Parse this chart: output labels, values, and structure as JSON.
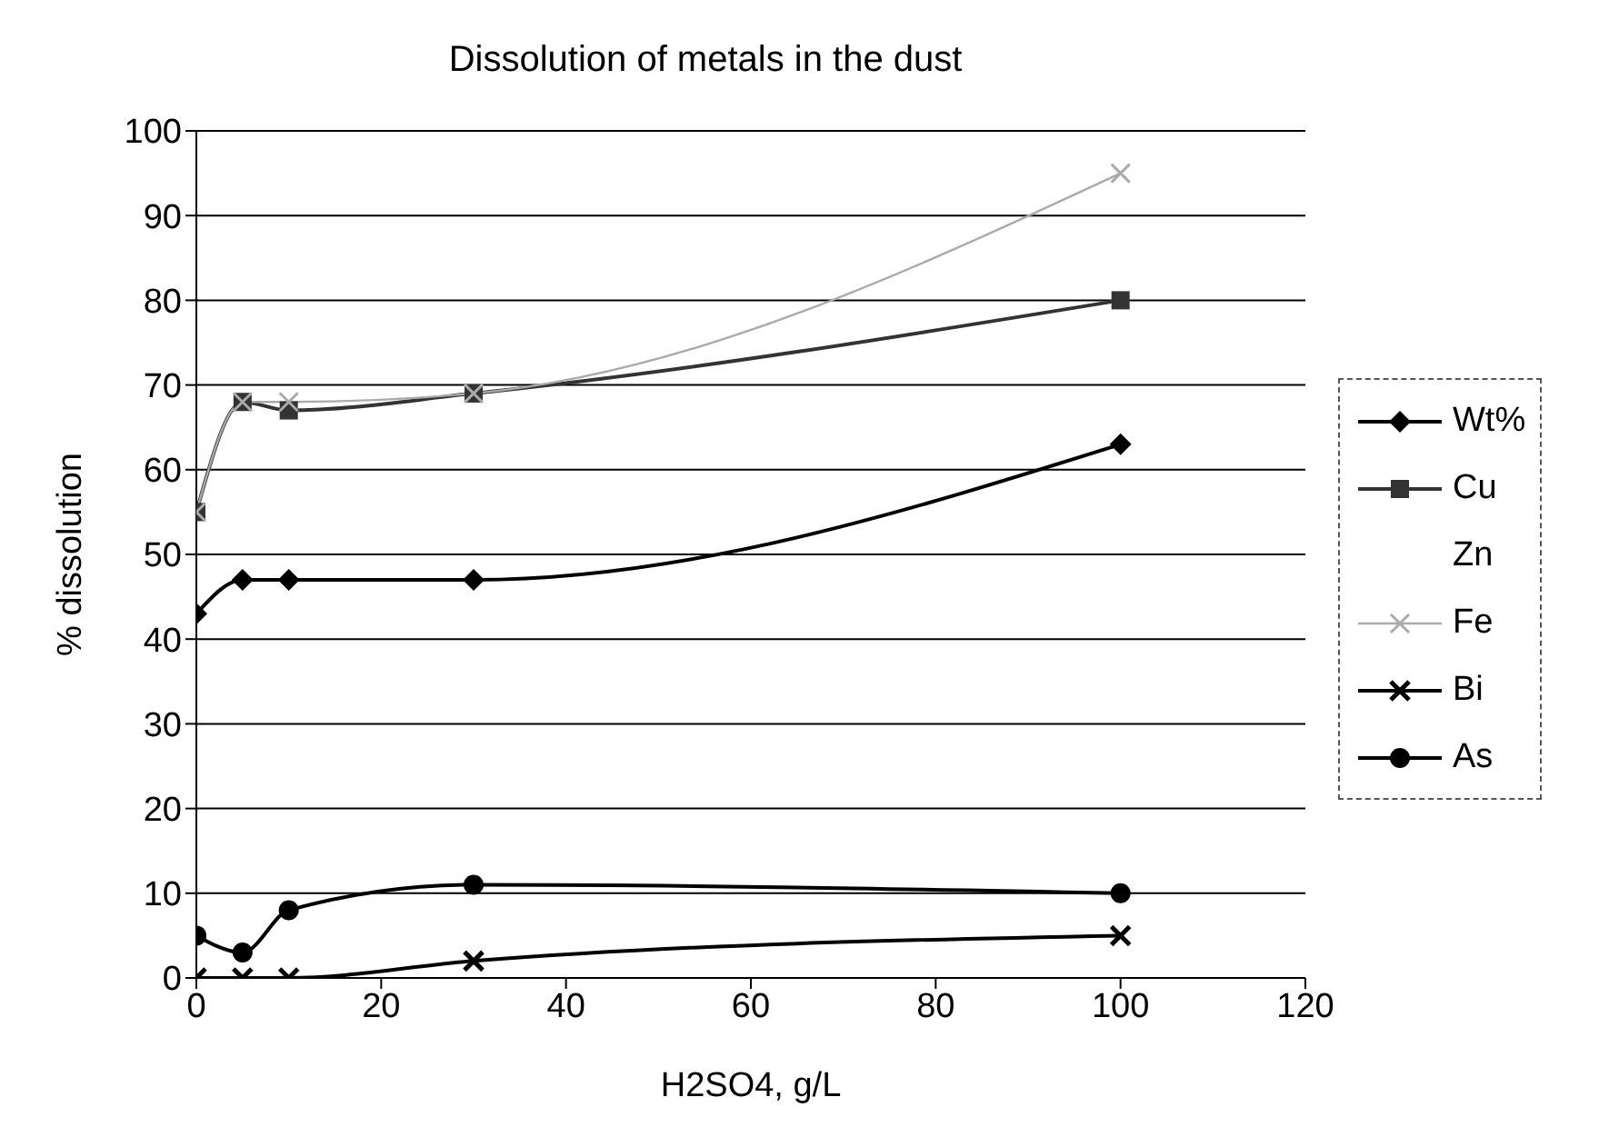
{
  "chart_data": {
    "type": "line",
    "title": "Dissolution of metals in the dust",
    "xlabel": "H2SO4, g/L",
    "ylabel": "% dissolution",
    "x": [
      0,
      5,
      10,
      30,
      100
    ],
    "series": [
      {
        "name": "Wt%",
        "color": "#000000",
        "marker": "diamond",
        "values": [
          43,
          47,
          47,
          47,
          63
        ]
      },
      {
        "name": "Cu",
        "color": "#333333",
        "marker": "square",
        "values": [
          55,
          68,
          67,
          69,
          80
        ]
      },
      {
        "name": "Zn",
        "marker": "none",
        "values": [
          null,
          null,
          null,
          null,
          null
        ]
      },
      {
        "name": "Fe",
        "color": "#aaaaaa",
        "marker": "cross",
        "values": [
          55,
          68,
          68,
          69,
          95
        ]
      },
      {
        "name": "Bi",
        "color": "#000000",
        "marker": "cross",
        "values": [
          0,
          0,
          0,
          2,
          5
        ]
      },
      {
        "name": "As",
        "color": "#000000",
        "marker": "circle",
        "values": [
          5,
          3,
          8,
          11,
          10
        ]
      }
    ],
    "xlim": [
      0,
      120
    ],
    "xticks": [
      0,
      20,
      40,
      60,
      80,
      100,
      120
    ],
    "ylim": [
      0,
      100
    ],
    "yticks": [
      0,
      10,
      20,
      30,
      40,
      50,
      60,
      70,
      80,
      90,
      100
    ],
    "grid": "y",
    "legend": "right",
    "line_style": "solid"
  }
}
